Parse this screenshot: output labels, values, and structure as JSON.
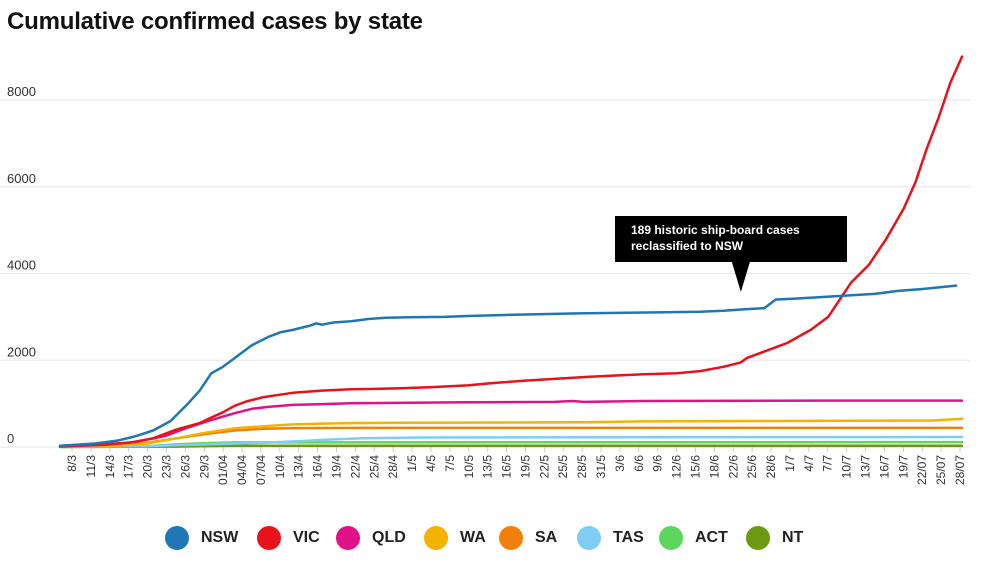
{
  "chart_data": {
    "type": "line",
    "title": "Cumulative confirmed cases by state",
    "xlabel": "",
    "ylabel": "",
    "ylim": [
      0,
      9000
    ],
    "yticks": [
      0,
      2000,
      4000,
      6000,
      8000
    ],
    "grid": true,
    "legend_position": "bottom",
    "x_tick_labels": [
      "8/3",
      "11/3",
      "14/3",
      "17/3",
      "20/3",
      "23/3",
      "26/3",
      "29/3",
      "01/04",
      "04/04",
      "07/04",
      "10/4",
      "13/4",
      "16/4",
      "19/4",
      "22/4",
      "25/4",
      "28/4",
      "1/5",
      "4/5",
      "7/5",
      "10/5",
      "13/5",
      "16/5",
      "19/5",
      "22/5",
      "25/5",
      "28/5",
      "31/5",
      "3/6",
      "6/6",
      "9/6",
      "12/6",
      "15/6",
      "18/6",
      "22/6",
      "25/6",
      "28/6",
      "1/7",
      "4/7",
      "7/7",
      "10/7",
      "13/7",
      "16/7",
      "19/7",
      "22/07",
      "25/07",
      "28/07"
    ],
    "annotation": {
      "text_lines": [
        "189 historic ship-board cases",
        "reclassified to NSW"
      ],
      "x_day": 117
    },
    "series": [
      {
        "name": "NSW",
        "color": "#1f77b4",
        "points": [
          [
            0,
            30
          ],
          [
            6,
            80
          ],
          [
            10,
            150
          ],
          [
            13,
            250
          ],
          [
            16,
            380
          ],
          [
            19,
            600
          ],
          [
            22,
            1000
          ],
          [
            24,
            1300
          ],
          [
            26,
            1700
          ],
          [
            28,
            1850
          ],
          [
            30,
            2050
          ],
          [
            33,
            2350
          ],
          [
            36,
            2550
          ],
          [
            38,
            2650
          ],
          [
            40,
            2700
          ],
          [
            43,
            2800
          ],
          [
            44,
            2850
          ],
          [
            45,
            2820
          ],
          [
            47,
            2870
          ],
          [
            50,
            2900
          ],
          [
            53,
            2950
          ],
          [
            56,
            2980
          ],
          [
            60,
            2990
          ],
          [
            66,
            3000
          ],
          [
            70,
            3020
          ],
          [
            78,
            3050
          ],
          [
            89,
            3080
          ],
          [
            101,
            3100
          ],
          [
            110,
            3120
          ],
          [
            114,
            3140
          ],
          [
            118,
            3180
          ],
          [
            121,
            3200
          ],
          [
            122,
            3300
          ],
          [
            123,
            3400
          ],
          [
            126,
            3420
          ],
          [
            130,
            3450
          ],
          [
            136,
            3500
          ],
          [
            140,
            3530
          ],
          [
            144,
            3600
          ],
          [
            148,
            3640
          ],
          [
            151,
            3680
          ],
          [
            154,
            3720
          ]
        ]
      },
      {
        "name": "VIC",
        "color": "#e8121a",
        "points": [
          [
            0,
            20
          ],
          [
            7,
            60
          ],
          [
            12,
            100
          ],
          [
            16,
            200
          ],
          [
            20,
            400
          ],
          [
            24,
            550
          ],
          [
            26,
            680
          ],
          [
            28,
            800
          ],
          [
            30,
            950
          ],
          [
            32,
            1050
          ],
          [
            35,
            1150
          ],
          [
            40,
            1250
          ],
          [
            45,
            1300
          ],
          [
            50,
            1330
          ],
          [
            58,
            1350
          ],
          [
            64,
            1380
          ],
          [
            70,
            1420
          ],
          [
            74,
            1470
          ],
          [
            80,
            1530
          ],
          [
            86,
            1580
          ],
          [
            91,
            1620
          ],
          [
            96,
            1650
          ],
          [
            101,
            1680
          ],
          [
            106,
            1700
          ],
          [
            110,
            1750
          ],
          [
            114,
            1850
          ],
          [
            117,
            1950
          ],
          [
            118,
            2050
          ],
          [
            121,
            2200
          ],
          [
            125,
            2400
          ],
          [
            129,
            2700
          ],
          [
            132,
            3000
          ],
          [
            134,
            3400
          ],
          [
            136,
            3800
          ],
          [
            139,
            4200
          ],
          [
            142,
            4800
          ],
          [
            145,
            5500
          ],
          [
            147,
            6100
          ],
          [
            149,
            6900
          ],
          [
            151,
            7600
          ],
          [
            153,
            8400
          ],
          [
            155,
            9000
          ]
        ]
      },
      {
        "name": "QLD",
        "color": "#e0128a",
        "points": [
          [
            0,
            10
          ],
          [
            8,
            50
          ],
          [
            13,
            120
          ],
          [
            18,
            250
          ],
          [
            22,
            450
          ],
          [
            26,
            620
          ],
          [
            30,
            780
          ],
          [
            33,
            880
          ],
          [
            36,
            930
          ],
          [
            40,
            970
          ],
          [
            45,
            990
          ],
          [
            50,
            1010
          ],
          [
            60,
            1020
          ],
          [
            70,
            1030
          ],
          [
            85,
            1040
          ],
          [
            88,
            1060
          ],
          [
            90,
            1040
          ],
          [
            100,
            1060
          ],
          [
            130,
            1070
          ],
          [
            155,
            1070
          ]
        ]
      },
      {
        "name": "WA",
        "color": "#f5b300",
        "points": [
          [
            0,
            5
          ],
          [
            10,
            30
          ],
          [
            15,
            80
          ],
          [
            20,
            200
          ],
          [
            25,
            330
          ],
          [
            30,
            430
          ],
          [
            35,
            480
          ],
          [
            40,
            520
          ],
          [
            45,
            540
          ],
          [
            50,
            550
          ],
          [
            60,
            560
          ],
          [
            90,
            570
          ],
          [
            100,
            590
          ],
          [
            150,
            610
          ],
          [
            155,
            650
          ]
        ]
      },
      {
        "name": "SA",
        "color": "#f07f0c",
        "points": [
          [
            0,
            5
          ],
          [
            10,
            30
          ],
          [
            15,
            100
          ],
          [
            20,
            200
          ],
          [
            25,
            300
          ],
          [
            30,
            380
          ],
          [
            35,
            420
          ],
          [
            40,
            435
          ],
          [
            50,
            440
          ],
          [
            155,
            440
          ]
        ]
      },
      {
        "name": "TAS",
        "color": "#7fcdf5",
        "points": [
          [
            0,
            2
          ],
          [
            15,
            20
          ],
          [
            25,
            60
          ],
          [
            35,
            100
          ],
          [
            42,
            140
          ],
          [
            46,
            170
          ],
          [
            52,
            200
          ],
          [
            62,
            220
          ],
          [
            155,
            230
          ]
        ]
      },
      {
        "name": "ACT",
        "color": "#5cd65c",
        "points": [
          [
            0,
            1
          ],
          [
            15,
            20
          ],
          [
            20,
            60
          ],
          [
            25,
            90
          ],
          [
            30,
            105
          ],
          [
            40,
            107
          ],
          [
            155,
            113
          ]
        ]
      },
      {
        "name": "NT",
        "color": "#6a9a12",
        "points": [
          [
            0,
            1
          ],
          [
            20,
            10
          ],
          [
            30,
            27
          ],
          [
            40,
            28
          ],
          [
            155,
            30
          ]
        ]
      }
    ]
  }
}
